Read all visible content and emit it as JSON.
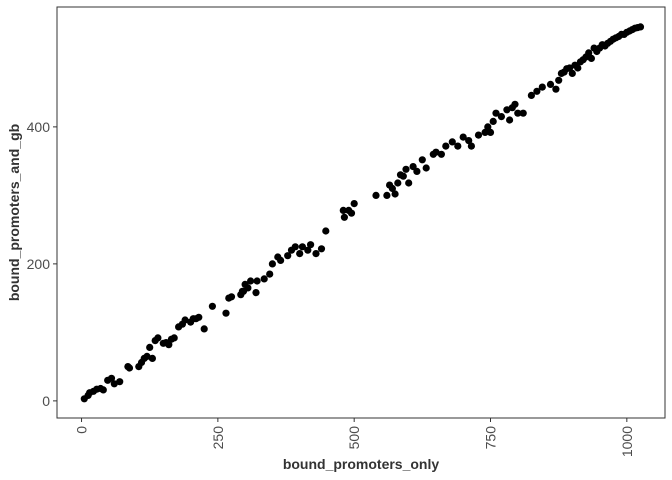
{
  "chart_data": {
    "type": "scatter",
    "title": "",
    "xlabel": "bound_promoters_only",
    "ylabel": "bound_promoters_and_gb",
    "xlim": [
      -45,
      1070
    ],
    "ylim": [
      -25,
      575
    ],
    "xticks": [
      0,
      250,
      500,
      750,
      1000
    ],
    "yticks": [
      0,
      200,
      400
    ],
    "xtick_labels": [
      "0",
      "250",
      "500",
      "750",
      "1000"
    ],
    "ytick_labels": [
      "0",
      "200",
      "400"
    ],
    "grid": false,
    "legend": "none",
    "point_color": "#000000",
    "x": [
      5,
      12,
      15,
      22,
      28,
      35,
      40,
      48,
      55,
      60,
      70,
      85,
      88,
      105,
      110,
      115,
      120,
      125,
      130,
      135,
      140,
      150,
      155,
      160,
      165,
      170,
      178,
      185,
      190,
      200,
      205,
      210,
      215,
      225,
      240,
      265,
      270,
      275,
      292,
      295,
      297,
      300,
      305,
      310,
      320,
      322,
      335,
      345,
      350,
      360,
      365,
      378,
      385,
      392,
      400,
      405,
      415,
      420,
      430,
      440,
      448,
      480,
      482,
      490,
      495,
      500,
      540,
      560,
      565,
      570,
      575,
      580,
      585,
      590,
      595,
      600,
      608,
      615,
      625,
      632,
      645,
      650,
      660,
      668,
      680,
      690,
      700,
      710,
      715,
      728,
      740,
      745,
      750,
      755,
      760,
      770,
      780,
      785,
      790,
      795,
      800,
      810,
      825,
      835,
      845,
      860,
      870,
      875,
      880,
      885,
      890,
      895,
      900,
      905,
      910,
      915,
      920,
      925,
      930,
      935,
      940,
      945,
      950,
      955,
      960,
      965,
      970,
      975,
      980,
      985,
      990,
      995,
      1000,
      1005,
      1010,
      1015,
      1020,
      1025
    ],
    "y": [
      3,
      8,
      12,
      14,
      17,
      18,
      16,
      30,
      33,
      25,
      28,
      50,
      48,
      50,
      56,
      62,
      65,
      78,
      62,
      88,
      92,
      84,
      85,
      82,
      90,
      92,
      108,
      112,
      118,
      115,
      120,
      120,
      122,
      105,
      138,
      128,
      150,
      152,
      155,
      160,
      160,
      170,
      165,
      175,
      158,
      175,
      178,
      185,
      200,
      210,
      205,
      212,
      220,
      225,
      215,
      225,
      220,
      228,
      215,
      222,
      248,
      278,
      268,
      278,
      274,
      288,
      300,
      300,
      315,
      310,
      302,
      318,
      330,
      328,
      338,
      318,
      342,
      335,
      352,
      340,
      360,
      363,
      360,
      372,
      378,
      372,
      385,
      380,
      372,
      388,
      392,
      400,
      392,
      408,
      420,
      415,
      425,
      410,
      428,
      433,
      420,
      420,
      446,
      452,
      458,
      462,
      455,
      468,
      478,
      480,
      485,
      486,
      478,
      490,
      486,
      495,
      498,
      502,
      508,
      500,
      515,
      510,
      515,
      520,
      518,
      522,
      525,
      528,
      530,
      532,
      535,
      535,
      538,
      540,
      542,
      544,
      545,
      546
    ]
  }
}
